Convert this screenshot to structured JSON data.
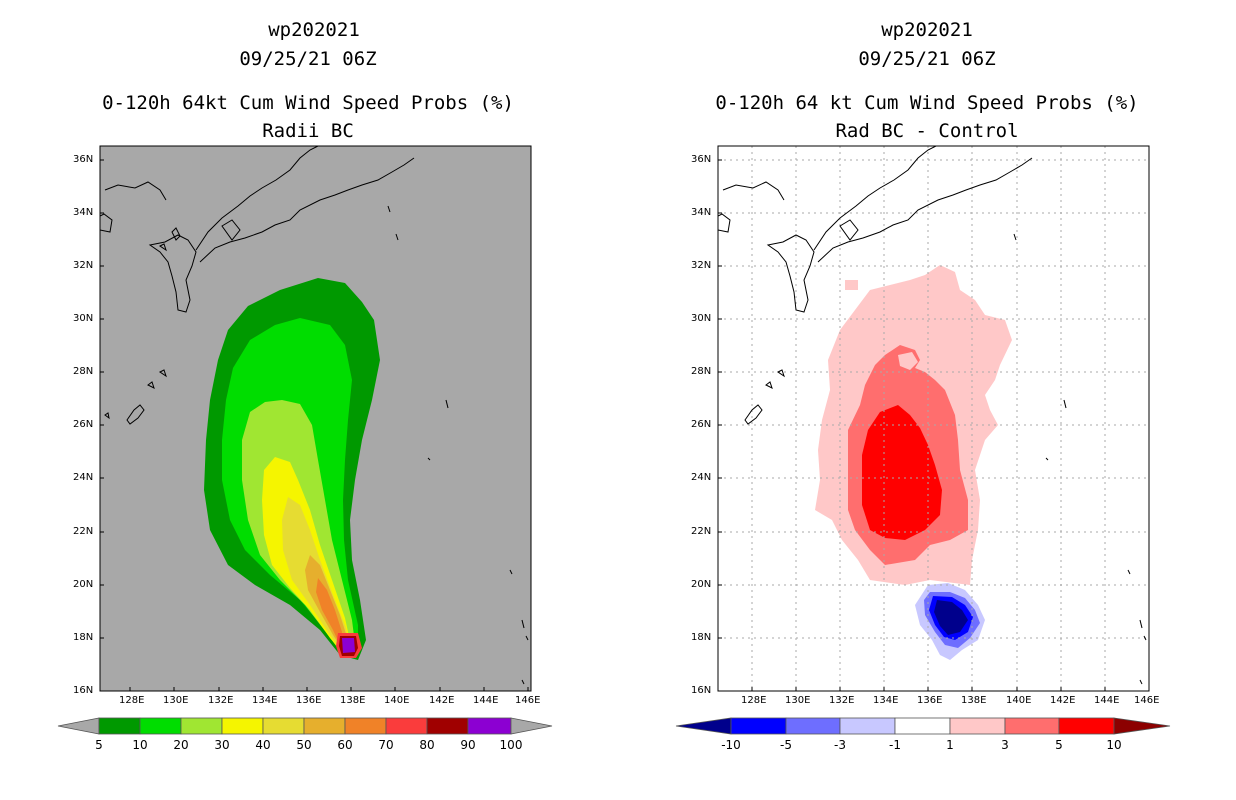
{
  "left_panel": {
    "title_line1": "wp202021",
    "title_line2": "09/25/21 06Z",
    "title_line3": "0-120h 64kt Cum Wind Speed Probs (%)",
    "title_line4": "Radii BC",
    "background_color": "#a8a8a8",
    "colorbar": {
      "colors": [
        "#009900",
        "#00dd00",
        "#a0e632",
        "#f5f500",
        "#e6dc32",
        "#e6af2d",
        "#f08228",
        "#fa3c3c",
        "#a00000",
        "#8c00d2"
      ],
      "labels": [
        "5",
        "10",
        "20",
        "30",
        "40",
        "50",
        "60",
        "70",
        "80",
        "90",
        "100"
      ]
    }
  },
  "right_panel": {
    "title_line1": "wp202021",
    "title_line2": "09/25/21 06Z",
    "title_line3": "0-120h 64 kt Cum Wind Speed Probs (%)",
    "title_line4": "Rad BC - Control",
    "background_color": "#ffffff",
    "colorbar": {
      "colors": [
        "#00008c",
        "#0000ff",
        "#6e6eff",
        "#c8c8ff",
        "#ffffff",
        "#ffc8c8",
        "#ff6e6e",
        "#ff0000",
        "#8c0000"
      ],
      "labels": [
        "-10",
        "-5",
        "-3",
        "-1",
        "1",
        "3",
        "5",
        "10"
      ]
    }
  },
  "axes": {
    "lat_labels": [
      "36N",
      "34N",
      "32N",
      "30N",
      "28N",
      "26N",
      "24N",
      "22N",
      "20N",
      "18N",
      "16N"
    ],
    "lon_labels": [
      "128E",
      "130E",
      "132E",
      "134E",
      "136E",
      "138E",
      "140E",
      "142E",
      "144E",
      "146E"
    ]
  }
}
